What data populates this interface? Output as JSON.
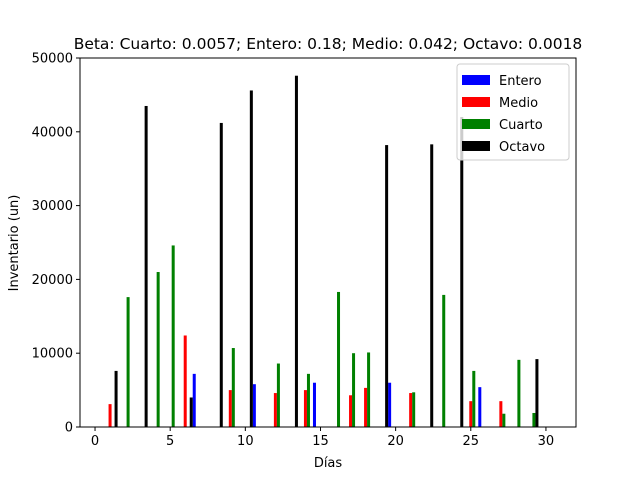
{
  "chart_data": {
    "type": "bar",
    "title": "Beta: Cuarto: 0.0057; Entero: 0.18; Medio: 0.042; Octavo: 0.0018",
    "xlabel": "Días",
    "ylabel": "Inventario (un)",
    "xlim": [
      -1,
      32
    ],
    "ylim": [
      0,
      50000
    ],
    "xticks": [
      0,
      5,
      10,
      15,
      20,
      25,
      30
    ],
    "yticks": [
      0,
      10000,
      20000,
      30000,
      40000,
      50000
    ],
    "legend_position": "top-right",
    "grid": false,
    "series": [
      {
        "name": "Entero",
        "color": "#0000ff",
        "points": [
          [
            6.6,
            7200
          ],
          [
            10.6,
            5800
          ],
          [
            14.6,
            6000
          ],
          [
            19.6,
            6000
          ],
          [
            25.6,
            5400
          ]
        ]
      },
      {
        "name": "Medio",
        "color": "#ff0000",
        "points": [
          [
            1.0,
            3100
          ],
          [
            6.0,
            12400
          ],
          [
            9.0,
            5000
          ],
          [
            12.0,
            4600
          ],
          [
            14.0,
            5000
          ],
          [
            17.0,
            4300
          ],
          [
            18.0,
            5300
          ],
          [
            21.0,
            4600
          ],
          [
            25.0,
            3500
          ],
          [
            27.0,
            3500
          ]
        ]
      },
      {
        "name": "Cuarto",
        "color": "#008000",
        "points": [
          [
            2.2,
            17600
          ],
          [
            4.2,
            21000
          ],
          [
            5.2,
            24600
          ],
          [
            9.2,
            10700
          ],
          [
            12.2,
            8600
          ],
          [
            14.2,
            7200
          ],
          [
            16.2,
            18300
          ],
          [
            17.2,
            10000
          ],
          [
            18.2,
            10100
          ],
          [
            21.2,
            4700
          ],
          [
            23.2,
            17900
          ],
          [
            25.2,
            7600
          ],
          [
            27.2,
            1800
          ],
          [
            28.2,
            9100
          ],
          [
            29.2,
            1900
          ]
        ]
      },
      {
        "name": "Octavo",
        "color": "#000000",
        "points": [
          [
            1.4,
            7600
          ],
          [
            3.4,
            43500
          ],
          [
            6.4,
            4000
          ],
          [
            8.4,
            41200
          ],
          [
            10.4,
            45600
          ],
          [
            13.4,
            47600
          ],
          [
            19.4,
            38200
          ],
          [
            22.4,
            38300
          ],
          [
            24.4,
            42000
          ],
          [
            29.4,
            9200
          ]
        ]
      }
    ]
  }
}
